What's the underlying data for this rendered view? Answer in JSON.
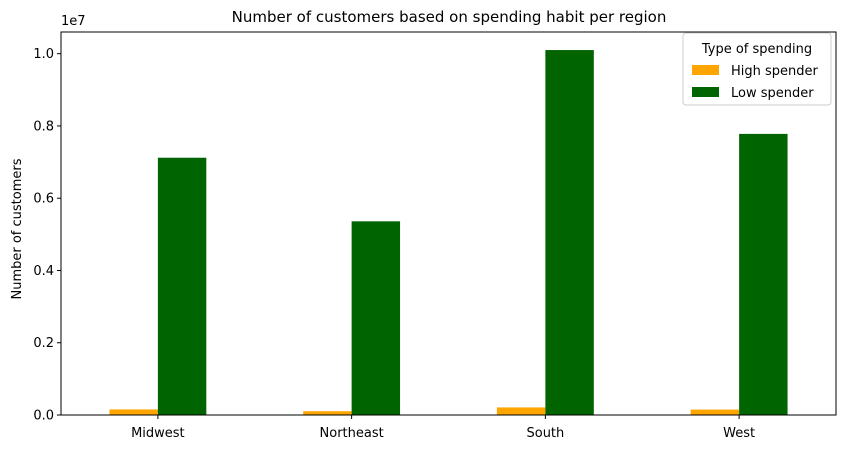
{
  "chart_data": {
    "type": "bar",
    "title": "Number of customers based on spending habit per region",
    "xlabel": "",
    "ylabel": "Number of customers",
    "y_offset_label": "1e7",
    "ylim": [
      0,
      10600000
    ],
    "y_ticks": [
      0,
      2000000,
      4000000,
      6000000,
      8000000,
      10000000
    ],
    "y_tick_labels": [
      "0.0",
      "0.2",
      "0.4",
      "0.6",
      "0.8",
      "1.0"
    ],
    "categories": [
      "Midwest",
      "Northeast",
      "South",
      "West"
    ],
    "series": [
      {
        "name": "High spender",
        "color": "#FFA500",
        "values": [
          155000,
          105000,
          210000,
          150000
        ]
      },
      {
        "name": "Low spender",
        "color": "#006400",
        "values": [
          7120000,
          5360000,
          10100000,
          7780000
        ]
      }
    ],
    "legend": {
      "title": "Type of spending",
      "position": "top-right"
    },
    "grid": false
  }
}
